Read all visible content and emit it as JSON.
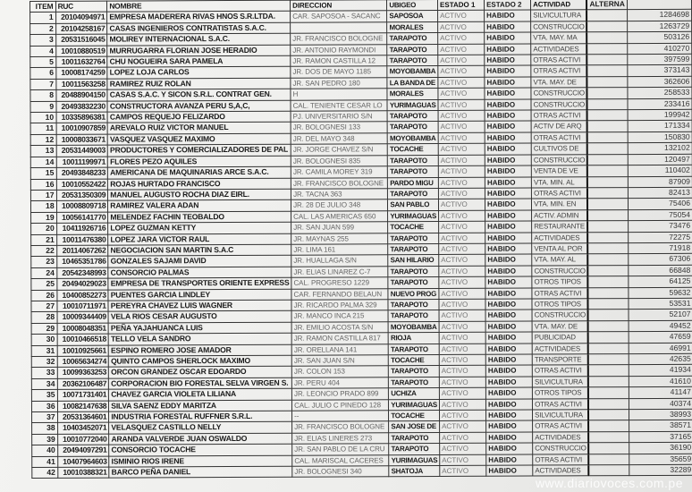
{
  "headers": {
    "item": "ITEM",
    "ruc": "RUC",
    "nombre": "NOMBRE",
    "direccion": "DIRECCION",
    "ubigeo": "UBIGEO",
    "estado1": "ESTADO 1",
    "estado2": "ESTADO 2",
    "actividad": "ACTIVIDAD",
    "alterna": "ALTERNA",
    "valor": ""
  },
  "rows": [
    [
      "1",
      "20104094971",
      "EMPRESA MADERERA RIVAS HNOS S.R.LTDA.",
      "CAR. SAPOSOA - SACANC",
      "SAPOSOA",
      "ACTIVO",
      "HABIDO",
      "SILVICULTURA",
      "",
      "1284698"
    ],
    [
      "2",
      "20104258167",
      "CASAS INGENIEROS CONTRATISTAS S.A.C.",
      "",
      "MORALES",
      "ACTIVO",
      "HABIDO",
      "CONSTRUCCIO",
      "",
      "1263729"
    ],
    [
      "3",
      "20531516045",
      "MOLIREY INTERNACIONAL S.A.C.",
      "JR. FRANCISCO BOLOGNE",
      "TARAPOTO",
      "ACTIVO",
      "HABIDO",
      "VTA. MAY. MA",
      "",
      "503126"
    ],
    [
      "4",
      "10010880519",
      "MURRUGARRA FLORIAN JOSE HERADIO",
      "JR. ANTONIO RAYMONDI",
      "TARAPOTO",
      "ACTIVO",
      "HABIDO",
      "ACTIVIDADES",
      "",
      "410270"
    ],
    [
      "5",
      "10011632764",
      "CHU NOGUEIRA SARA PAMELA",
      "JR. RAMON CASTILLA 12",
      "TARAPOTO",
      "ACTIVO",
      "HABIDO",
      "OTRAS ACTIVI",
      "",
      "397599"
    ],
    [
      "6",
      "10008174259",
      "LOPEZ LOJA CARLOS",
      "JR. DOS DE MAYO 1185",
      "MOYOBAMBA",
      "ACTIVO",
      "HABIDO",
      "OTRAS ACTIVI",
      "",
      "373143"
    ],
    [
      "7",
      "10011563258",
      "RAMIREZ RUIZ ROLAN",
      "JR. SAN PEDRO 180",
      "LA BANDA DE",
      "ACTIVO",
      "HABIDO",
      "VTA. MAY. DE",
      "",
      "362606"
    ],
    [
      "8",
      "20488904150",
      "CASAS S.A.C. Y SICON S.R.L. CONTRAT GEN.",
      "H",
      "MORALES",
      "ACTIVO",
      "HABIDO",
      "CONSTRUCCIO",
      "",
      "258533"
    ],
    [
      "9",
      "20493832230",
      "CONSTRUCTORA AVANZA PERU S,A,C,",
      "CAL. TENIENTE CESAR LO",
      "YURIMAGUAS",
      "ACTIVO",
      "HABIDO",
      "CONSTRUCCIO",
      "",
      "233416"
    ],
    [
      "10",
      "10335896381",
      "CAMPOS REQUEJO FELIZARDO",
      "PJ. UNIVERSITARIO S/N",
      "TARAPOTO",
      "ACTIVO",
      "HABIDO",
      "OTRAS ACTIVI",
      "",
      "199942"
    ],
    [
      "11",
      "10010907859",
      "AREVALO RUIZ VICTOR MANUEL",
      "JR. BOLOGNESI 133",
      "TARAPOTO",
      "ACTIVO",
      "HABIDO",
      "ACTIV DE ARQ",
      "",
      "171334"
    ],
    [
      "12",
      "10008033671",
      "VASQUEZ VASQUEZ MAXIMO",
      "JR. DEL MAYO 348",
      "MOYOBAMBA",
      "ACTIVO",
      "HABIDO",
      "OTRAS ACTIVI",
      "",
      "150830"
    ],
    [
      "13",
      "20531449003",
      "PRODUCTORES Y COMERCIALIZADORES DE PAL",
      "JR. JORGE CHAVEZ S/N",
      "TOCACHE",
      "ACTIVO",
      "HABIDO",
      "CULTIVOS DE",
      "",
      "132102"
    ],
    [
      "14",
      "10011199971",
      "FLORES PEZO AQUILES",
      "JR. BOLOGNESI 835",
      "TARAPOTO",
      "ACTIVO",
      "HABIDO",
      "CONSTRUCCIO",
      "",
      "120497"
    ],
    [
      "15",
      "20493848233",
      "AMERICANA DE MAQUINARIAS ARCE S.A.C.",
      "JR. CAMILA MOREY 319",
      "TARAPOTO",
      "ACTIVO",
      "HABIDO",
      "VENTA DE VE",
      "",
      "110402"
    ],
    [
      "16",
      "10010552422",
      "ROJAS HURTADO FRANCISCO",
      "JR. FRANCISCO BOLOGNE",
      "PARDO MIGU",
      "ACTIVO",
      "HABIDO",
      "VTA. MIN. AL",
      "",
      "87909"
    ],
    [
      "17",
      "20531350309",
      "MANUEL AUGUSTO ROCHA DIAZ EIRL.",
      "JR. TACNA 363",
      "TARAPOTO",
      "ACTIVO",
      "HABIDO",
      "OTRAS ACTIVI",
      "",
      "82413"
    ],
    [
      "18",
      "10008809718",
      "RAMIREZ VALERA ADAN",
      "JR. 28 DE JULIO 348",
      "SAN PABLO",
      "ACTIVO",
      "HABIDO",
      "VTA. MIN. EN",
      "",
      "75406"
    ],
    [
      "19",
      "10056141770",
      "MELENDEZ FACHIN TEOBALDO",
      "CAL. LAS AMERICAS 650",
      "YURIMAGUAS",
      "ACTIVO",
      "HABIDO",
      "ACTIV. ADMIN",
      "",
      "75054"
    ],
    [
      "20",
      "10411926716",
      "LOPEZ GUZMAN KETTY",
      "JR. SAN JUAN 599",
      "TOCACHE",
      "ACTIVO",
      "HABIDO",
      "RESTAURANTE",
      "",
      "73476"
    ],
    [
      "21",
      "10011476380",
      "LOPEZ JARA VICTOR RAUL",
      "JR. MAYNAS 255",
      "TARAPOTO",
      "ACTIVO",
      "HABIDO",
      "ACTIVIDADES",
      "",
      "72275"
    ],
    [
      "22",
      "20114067262",
      "NEGOCIACION SAN MARTIN S.A.C",
      "JR. LIMA 161",
      "TARAPOTO",
      "ACTIVO",
      "HABIDO",
      "VENTA AL POR",
      "",
      "71918"
    ],
    [
      "23",
      "10465351786",
      "GONZALES SAJAMI DAVID",
      "JR. HUALLAGA S/N",
      "SAN HILARIO",
      "ACTIVO",
      "HABIDO",
      "VTA. MAY. AL",
      "",
      "67306"
    ],
    [
      "24",
      "20542348993",
      "CONSORCIO PALMAS",
      "JR. ELIAS LINAREZ C-7",
      "TARAPOTO",
      "ACTIVO",
      "HABIDO",
      "CONSTRUCCIO",
      "",
      "66848"
    ],
    [
      "25",
      "20494029023",
      "EMPRESA DE TRANSPORTES ORIENTE EXPRESS",
      "CAL. PROGRESO 1229",
      "TARAPOTO",
      "ACTIVO",
      "HABIDO",
      "OTROS TIPOS",
      "",
      "64125"
    ],
    [
      "26",
      "10400852273",
      "PUENTES GARCIA LINDLEY",
      "CAR. FERNANDO BELAUN",
      "NUEVO PROG",
      "ACTIVO",
      "HABIDO",
      "OTRAS ACTIVI",
      "",
      "59632"
    ],
    [
      "27",
      "10010711971",
      "PEREYRA CHAVEZ LUIS WAGNER",
      "JR. RICARDO PALMA 329",
      "TARAPOTO",
      "ACTIVO",
      "HABIDO",
      "OTROS TIPOS",
      "",
      "53531"
    ],
    [
      "28",
      "10009344409",
      "VELA RIOS CESAR AUGUSTO",
      "JR. MANCO INCA 215",
      "TARAPOTO",
      "ACTIVO",
      "HABIDO",
      "CONSTRUCCIO",
      "",
      "52107"
    ],
    [
      "29",
      "10008048351",
      "PEÑA YAJAHUANCA LUIS",
      "JR. EMILIO ACOSTA S/N",
      "MOYOBAMBA",
      "ACTIVO",
      "HABIDO",
      "VTA. MAY. DE",
      "",
      "49452"
    ],
    [
      "30",
      "10010466518",
      "TELLO VELA SANDRO",
      "JR. RAMON CASTILLA 817",
      "RIOJA",
      "ACTIVO",
      "HABIDO",
      "PUBLICIDAD",
      "",
      "47659"
    ],
    [
      "31",
      "10010925661",
      "ESPINO ROMERO JOSE AMADOR",
      "JR. ORELLANA 141",
      "TARAPOTO",
      "ACTIVO",
      "HABIDO",
      "ACTIVIDADES",
      "",
      "46991"
    ],
    [
      "32",
      "10065634274",
      "QUINTO CAMPOS SHERLOCK MAXIMO",
      "JR. SAN JUAN S/N",
      "TOCACHE",
      "ACTIVO",
      "HABIDO",
      "TRANSPORTE",
      "",
      "42635"
    ],
    [
      "33",
      "10099363253",
      "ORCON GRANDEZ OSCAR EDOARDO",
      "JR. COLON 153",
      "TARAPOTO",
      "ACTIVO",
      "HABIDO",
      "OTRAS ACTIVI",
      "",
      "41934"
    ],
    [
      "34",
      "20362106487",
      "CORPORACION BIO FORESTAL SELVA VIRGEN S.",
      "JR. PERU 404",
      "TARAPOTO",
      "ACTIVO",
      "HABIDO",
      "SILVICULTURA",
      "",
      "41610"
    ],
    [
      "35",
      "10071731401",
      "CHAVEZ GARCIA VIOLETA LILIANA",
      "JR. LEONCIO PRADO 899",
      "UCHIZA",
      "ACTIVO",
      "HABIDO",
      "OTROS TIPOS",
      "",
      "41147"
    ],
    [
      "36",
      "10082147638",
      "SILVA SAENZ EDDY MARITZA",
      "CAL. JULIO C PINEDO 128",
      "YURIMAGUAS",
      "ACTIVO",
      "HABIDO",
      "OTRAS ACTIVI",
      "",
      "40374"
    ],
    [
      "37",
      "20531364601",
      "INDUSTRIA FORESTAL RUFFNER S.R.L.",
      "--",
      "TOCACHE",
      "ACTIVO",
      "HABIDO",
      "SILVICULTURA",
      "",
      "38993"
    ],
    [
      "38",
      "10403452071",
      "VELASQUEZ CASTILLO NELLY",
      "JR. FRANCISCO BOLOGNE",
      "SAN JOSE DE",
      "ACTIVO",
      "HABIDO",
      "OTRAS ACTIVI",
      "",
      "38571"
    ],
    [
      "39",
      "10010772040",
      "ARANDA VALVERDE JUAN OSWALDO",
      "JR. ELIAS LINERES 273",
      "TARAPOTO",
      "ACTIVO",
      "HABIDO",
      "ACTIVIDADES",
      "",
      "37165"
    ],
    [
      "40",
      "20494097291",
      "CONSORCIO TOCACHE",
      "JR. SAN PABLO DE LA CRU",
      "TARAPOTO",
      "ACTIVO",
      "HABIDO",
      "CONSTRUCCIO",
      "",
      "36190"
    ],
    [
      "41",
      "10407964603",
      "ISMINIO RIOS IRENE",
      "CAL. MARISCAL CACERES",
      "YURIMAGUAS",
      "ACTIVO",
      "HABIDO",
      "OTRAS ACTIVI",
      "",
      "35659"
    ],
    [
      "42",
      "10010388321",
      "BARCO PEÑA DANIEL",
      "JR. BOLOGNESI 340",
      "SHATOJA",
      "ACTIVO",
      "HABIDO",
      "ACTIVIDADES",
      "",
      "32289"
    ]
  ],
  "watermark": "www.diariovoces.com.pe"
}
